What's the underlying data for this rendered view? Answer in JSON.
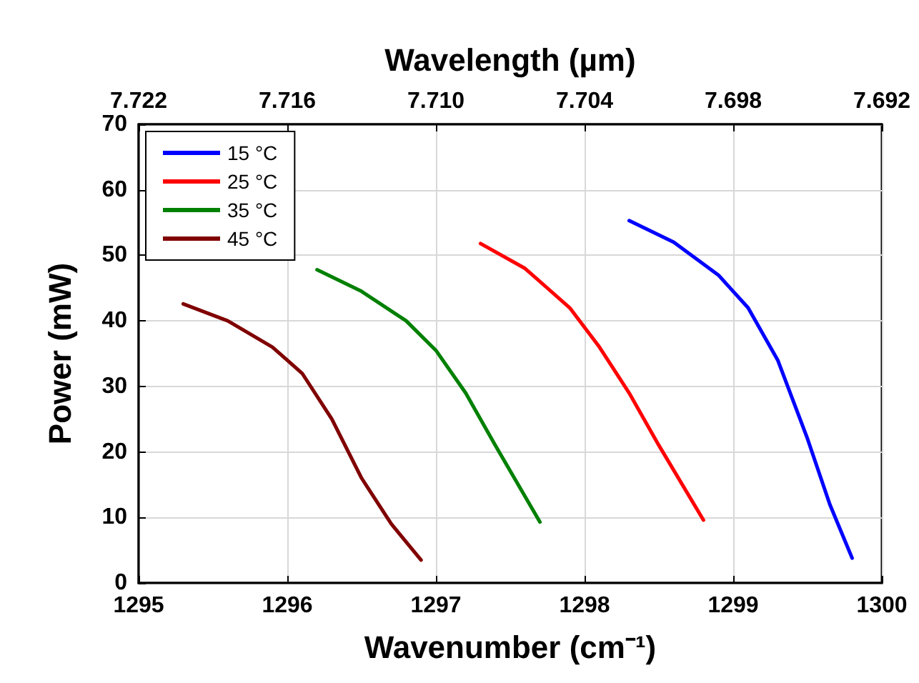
{
  "chart_data": {
    "type": "line",
    "xlabel": "Wavenumber (cm⁻¹)",
    "ylabel": "Power (mW)",
    "x2label": "Wavelength (µm)",
    "xlim": [
      1295,
      1300
    ],
    "xticks": [
      1295,
      1296,
      1297,
      1298,
      1299,
      1300
    ],
    "x2lim": [
      7.722,
      7.692
    ],
    "x2ticks": [
      {
        "value": 7.722,
        "label": "7.722"
      },
      {
        "value": 7.716,
        "label": "7.716"
      },
      {
        "value": 7.71,
        "label": "7.710"
      },
      {
        "value": 7.704,
        "label": "7.704"
      },
      {
        "value": 7.698,
        "label": "7.698"
      },
      {
        "value": 7.692,
        "label": "7.692"
      }
    ],
    "ylim": [
      0,
      70
    ],
    "yticks": [
      0,
      10,
      20,
      30,
      40,
      50,
      60,
      70
    ],
    "grid": true,
    "legend": "top left",
    "marker": "none",
    "line_style": "solid",
    "series": [
      {
        "name": "15 °C",
        "color": "#0000ff",
        "x": [
          1298.3,
          1298.6,
          1298.9,
          1299.1,
          1299.3,
          1299.5,
          1299.65,
          1299.8
        ],
        "values": [
          55.3,
          52,
          47,
          42,
          34,
          22,
          12,
          3.8
        ]
      },
      {
        "name": "25 °C",
        "color": "#ff0000",
        "x": [
          1297.3,
          1297.6,
          1297.9,
          1298.1,
          1298.3,
          1298.5,
          1298.8
        ],
        "values": [
          51.8,
          48,
          42,
          36,
          29,
          21,
          9.6
        ]
      },
      {
        "name": "35 °C",
        "color": "#008000",
        "x": [
          1296.2,
          1296.5,
          1296.8,
          1297.0,
          1297.2,
          1297.4,
          1297.7
        ],
        "values": [
          47.8,
          44.5,
          40,
          35.5,
          29,
          21,
          9.3
        ]
      },
      {
        "name": "45 °C",
        "color": "#800000",
        "x": [
          1295.3,
          1295.6,
          1295.9,
          1296.1,
          1296.3,
          1296.5,
          1296.7,
          1296.9
        ],
        "values": [
          42.6,
          40,
          36,
          32,
          25,
          16,
          9,
          3.5
        ]
      }
    ]
  }
}
